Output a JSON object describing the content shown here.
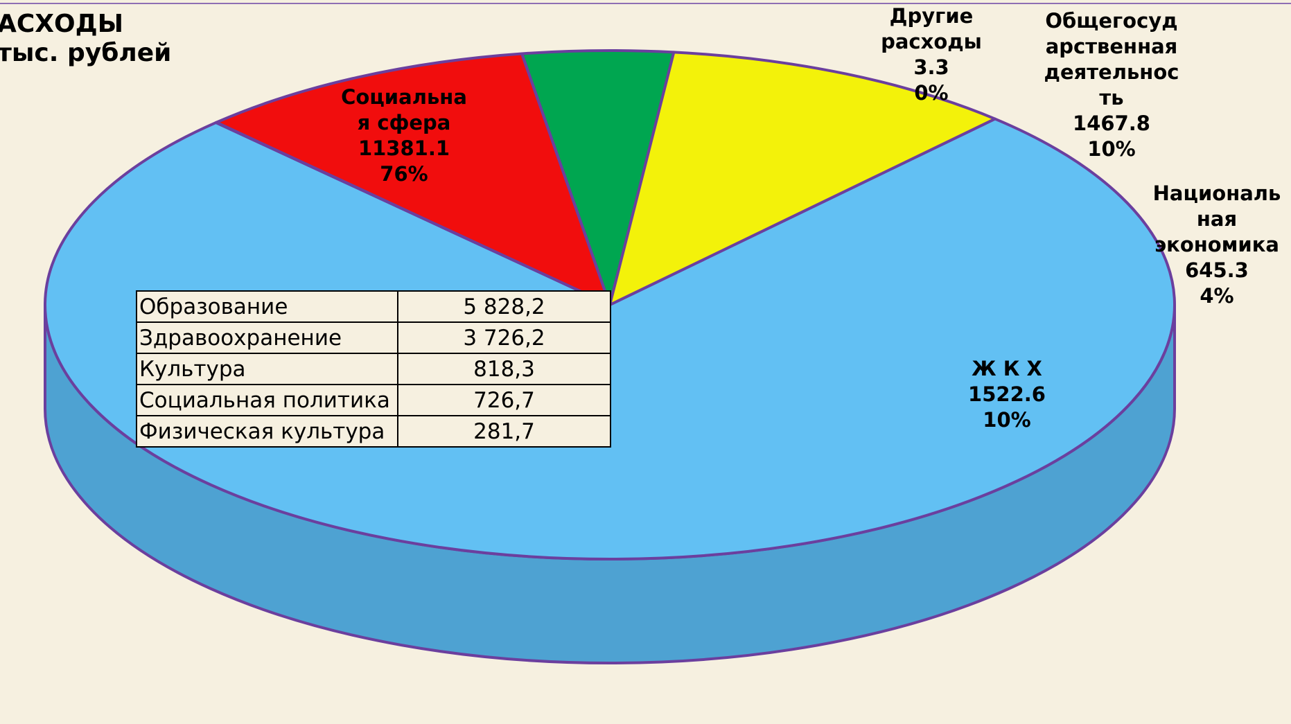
{
  "title": {
    "line1": "АСХОДЫ",
    "line2": "тыс. рублей"
  },
  "chart_data": {
    "type": "pie",
    "title": "АСХОДЫ",
    "subtitle": "тыс. рублей",
    "slices": [
      {
        "name_lines": [
          "Социальна",
          "я сфера"
        ],
        "value": 11381.1,
        "value_label": "11381.1",
        "percent_label": "76%",
        "color": "#62c0f3"
      },
      {
        "name_lines": [
          "Другие",
          "расходы"
        ],
        "value": 3.3,
        "value_label": "3.3",
        "percent_label": "0%",
        "color": "#62c0f3"
      },
      {
        "name_lines": [
          "Общегосуд",
          "арственная",
          "деятельнос",
          "ть"
        ],
        "value": 1467.8,
        "value_label": "1467.8",
        "percent_label": "10%",
        "color": "#f10d0d"
      },
      {
        "name_lines": [
          "Националь",
          "ная",
          "экономика"
        ],
        "value": 645.3,
        "value_label": "645.3",
        "percent_label": "4%",
        "color": "#00a650"
      },
      {
        "name_lines": [
          "Ж К Х"
        ],
        "value": 1522.6,
        "value_label": "1522.6",
        "percent_label": "10%",
        "color": "#f3f20a"
      }
    ]
  },
  "breakdown_table": {
    "rows": [
      {
        "name": "Образование",
        "value": "5 828,2"
      },
      {
        "name": "Здравоохранение",
        "value": "3 726,2"
      },
      {
        "name": "Культура",
        "value": "818,3"
      },
      {
        "name": "Социальная политика",
        "value": "726,7"
      },
      {
        "name": "Физическая культура",
        "value": "281,7"
      }
    ]
  },
  "colors": {
    "outline": "#6b3f9e",
    "side_blue": "#4ea2d2",
    "side_yellow": "#d6d400"
  }
}
